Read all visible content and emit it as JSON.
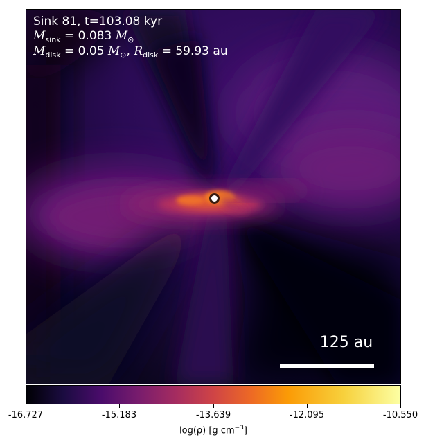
{
  "annotation": {
    "title": "Sink 81, t=103.08 kyr",
    "m_sink_symbol": "M",
    "m_sink_subscript": "sink",
    "m_sink_value": "= 0.083",
    "m_disk_symbol": "M",
    "m_disk_subscript": "disk",
    "m_disk_value": "= 0.05",
    "r_disk_symbol": "R",
    "r_disk_subscript": "disk",
    "r_disk_value": "= 59.93 au",
    "solar_mass_symbol": "M",
    "solar_subscript": "⊙"
  },
  "scale_bar": {
    "label": "125 au",
    "color": "#ffffff"
  },
  "colorbar": {
    "colormap": "inferno",
    "ticks": [
      "-16.727",
      "-15.183",
      "-13.639",
      "-12.095",
      "-10.550"
    ],
    "label_prefix": "log(ρ) [g cm",
    "label_exponent": "−3",
    "label_suffix": "]"
  },
  "colors": {
    "background_dark": "#04020c",
    "envelope_purple": "#4b1276",
    "disk_orange": "#f0742a",
    "sink_fill": "#ffffff",
    "sink_outline": "#3a1d10"
  },
  "icons": {
    "sink_marker": "sink-particle-icon"
  }
}
